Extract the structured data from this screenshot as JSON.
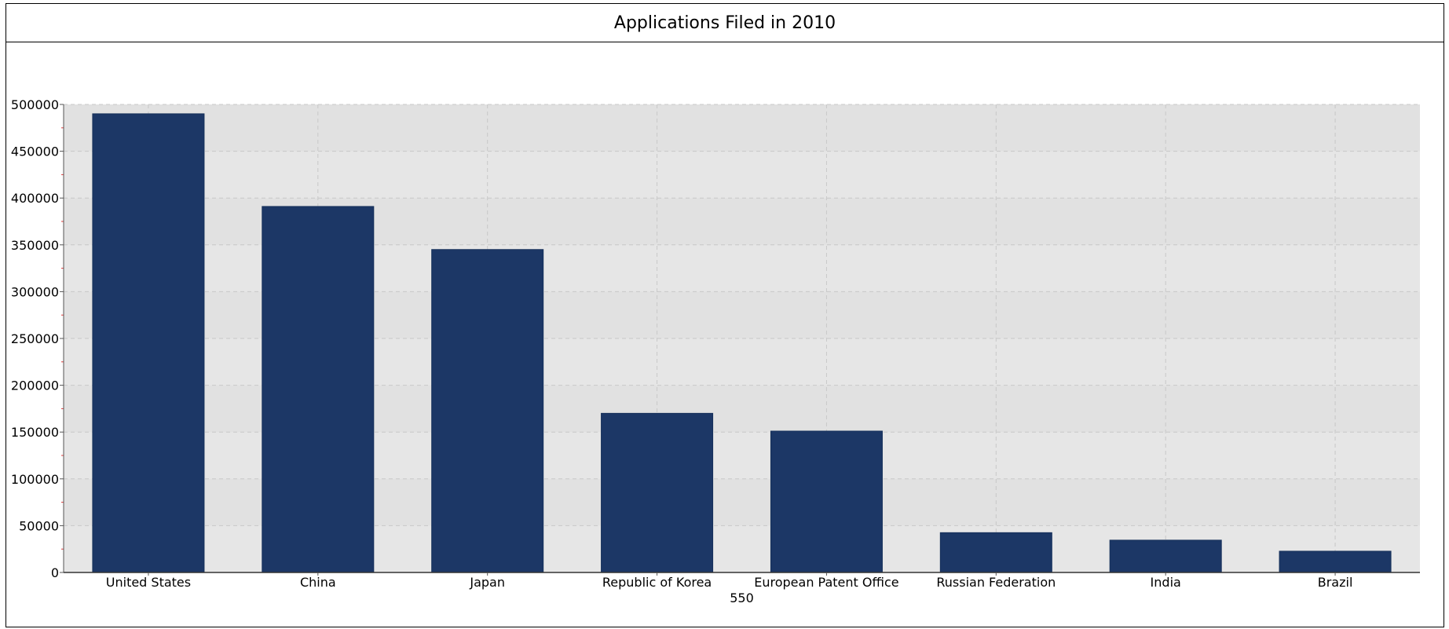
{
  "chart_data": {
    "type": "bar",
    "title": "Applications Filed in 2010",
    "xlabel": "550",
    "ylabel": "",
    "categories": [
      "United States",
      "China",
      "Japan",
      "Republic of Korea",
      "European Patent Office",
      "Russian Federation",
      "India",
      "Brazil"
    ],
    "values": [
      490000,
      391000,
      345000,
      170000,
      151000,
      42500,
      34500,
      22700
    ],
    "ylim": [
      0,
      500000
    ],
    "yticks": [
      0,
      50000,
      100000,
      150000,
      200000,
      250000,
      300000,
      350000,
      400000,
      450000,
      500000
    ],
    "grid": true,
    "legend": "none"
  },
  "colors": {
    "bar": "#1c3766",
    "plot_background": "#e6e6e6",
    "grid": "#c8c8c8",
    "minor_tick": "#e03c3c"
  }
}
